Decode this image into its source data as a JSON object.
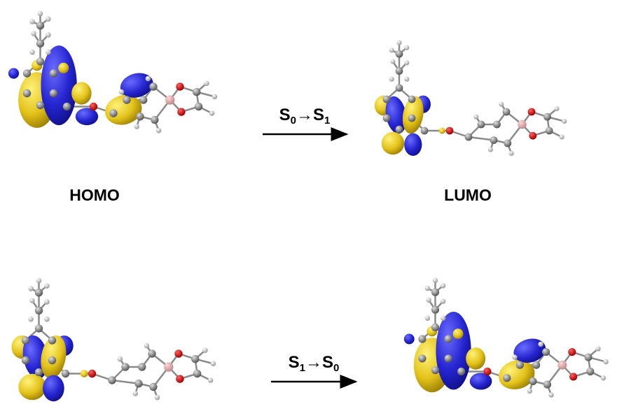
{
  "panels": [
    {
      "label": "HOMO"
    },
    {
      "label": "LUMO"
    }
  ],
  "transitions": [
    {
      "from": "S",
      "from_sub": "0",
      "arrow": "→",
      "to": "S",
      "to_sub": "1"
    },
    {
      "from": "S",
      "from_sub": "1",
      "arrow": "→",
      "to": "S",
      "to_sub": "0"
    }
  ]
}
